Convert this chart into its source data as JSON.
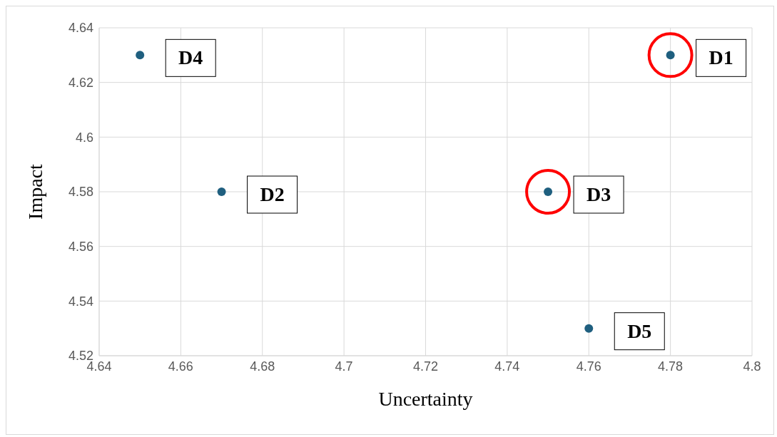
{
  "chart_data": {
    "type": "scatter",
    "xlabel": "Uncertainty",
    "ylabel": "Impact",
    "xlim": [
      4.64,
      4.8
    ],
    "xticks": [
      4.64,
      4.66,
      4.68,
      {
        "value": 4.7,
        "label": "4.7"
      },
      4.72,
      4.74,
      4.76,
      4.78,
      {
        "value": 4.8,
        "label": "4.8"
      }
    ],
    "ylim": [
      4.52,
      4.64
    ],
    "yticks": [
      4.52,
      4.54,
      4.56,
      4.58,
      {
        "value": 4.6,
        "label": "4.6"
      },
      4.62,
      4.64
    ],
    "grid": true,
    "marker": "circle",
    "series": [
      {
        "color": "#1f5f7f",
        "x": [
          4.78,
          4.67,
          4.75,
          4.65,
          4.76
        ],
        "values": [
          4.63,
          4.58,
          4.58,
          4.63,
          4.53
        ]
      },
      {
        "color": "#ff0000",
        "x": [
          4.78,
          4.75
        ],
        "values": [
          4.63,
          4.58
        ]
      }
    ],
    "annotations": [
      {
        "text": "D1",
        "x": 4.78,
        "y": 4.63
      },
      {
        "text": "D2",
        "x": 4.67,
        "y": 4.58
      },
      {
        "text": "D3",
        "x": 4.75,
        "y": 4.58
      },
      {
        "text": "D4",
        "x": 4.65,
        "y": 4.63
      },
      {
        "text": "D5",
        "x": 4.76,
        "y": 4.53
      }
    ]
  }
}
